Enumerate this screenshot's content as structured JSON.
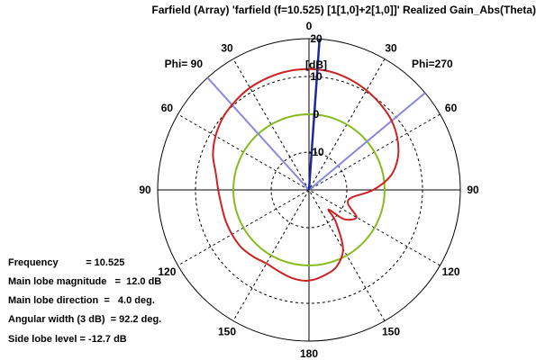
{
  "window": {
    "title": "Farfield (Array) 'farfield (f=10.525) [1[1,0]+2[1,0]]' Realized Gain_Abs(Theta)"
  },
  "info_panel": {
    "frequency": "Frequency          = 10.525",
    "main_lobe_magnitude": "Main lobe magnitude   =  12.0 dB",
    "main_lobe_direction": "Main lobe direction  =   4.0 deg.",
    "angular_width": "Angular width (3 dB)  = 92.2 deg.",
    "side_lobe_level": "Side lobe level = -12.7 dB"
  },
  "chart_data": {
    "type": "polar",
    "title": "Farfield (Array) 'farfield (f=10.525) [1[1,0]+2[1,0]]' Realized Gain_Abs(Theta)",
    "radial_unit": "[dB]",
    "radial_ticks": [
      "20",
      "10",
      "0",
      "-10"
    ],
    "radial_range_db": [
      -20,
      20
    ],
    "angle_labels": [
      {
        "text": "0",
        "angle": 0
      },
      {
        "text": "30",
        "angle": 30
      },
      {
        "text": "60",
        "angle": 60
      },
      {
        "text": "90",
        "angle": 90
      },
      {
        "text": "120",
        "angle": 120
      },
      {
        "text": "150",
        "angle": 150
      },
      {
        "text": "180",
        "angle": 180
      },
      {
        "text": "150",
        "angle": 210
      },
      {
        "text": "120",
        "angle": 240
      },
      {
        "text": "90",
        "angle": 270
      },
      {
        "text": "60",
        "angle": 300
      },
      {
        "text": "30",
        "angle": 330
      }
    ],
    "phi_labels": [
      "Phi= 90",
      "Phi=270"
    ],
    "main_lobe": {
      "magnitude_db": 12.0,
      "direction_deg": 4.0,
      "angular_width_deg": 92.2
    },
    "side_lobe_level_db": -12.7,
    "beam_markers_deg": [
      -42.1,
      50.1
    ],
    "reference_circle_db": 0,
    "series": [
      {
        "color": "#cc2222",
        "angles_deg": [
          0,
          10,
          20,
          30,
          40,
          50,
          60,
          70,
          80,
          90,
          100,
          110,
          120,
          130,
          135,
          140,
          150,
          160,
          170,
          180,
          190,
          200,
          210,
          220,
          230,
          240,
          250,
          260,
          270,
          280,
          290,
          300,
          310,
          320,
          330,
          340,
          350
        ],
        "gain_db": [
          11.95,
          11.8,
          11.2,
          10.4,
          9.5,
          8.5,
          7.0,
          5.0,
          2.0,
          -3.0,
          -8.5,
          -9.0,
          -5.5,
          -8.0,
          -12.7,
          -9.0,
          -2.0,
          1.5,
          3.0,
          4.0,
          3.8,
          3.0,
          2.5,
          3.0,
          3.5,
          3.5,
          3.5,
          3.5,
          4.0,
          5.0,
          7.0,
          8.5,
          9.7,
          10.5,
          11.2,
          11.6,
          11.9
        ]
      }
    ]
  },
  "colors": {
    "pattern": "#cc2222",
    "reference_circle": "#88bb22",
    "beam_width": "#8888dd",
    "main_lobe": "#1a2a99",
    "grid": "#000000"
  }
}
